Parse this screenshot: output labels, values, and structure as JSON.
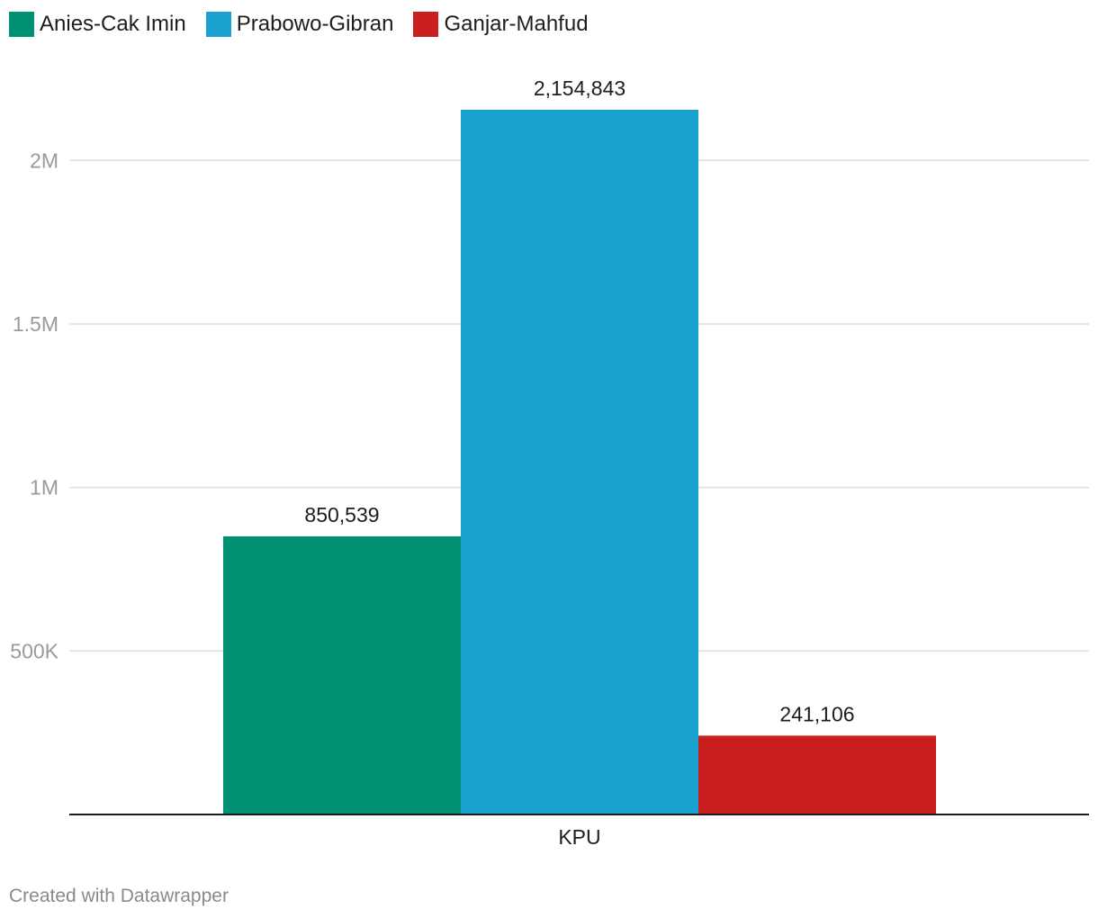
{
  "legend": [
    {
      "label": "Anies-Cak Imin",
      "color": "#009173"
    },
    {
      "label": "Prabowo-Gibran",
      "color": "#1aa1d0"
    },
    {
      "label": "Ganjar-Mahfud",
      "color": "#c91f1f"
    }
  ],
  "footer": "Created with Datawrapper",
  "chart_data": {
    "type": "bar",
    "categories": [
      "KPU"
    ],
    "series": [
      {
        "name": "Anies-Cak Imin",
        "values": [
          850539
        ],
        "label": "850,539",
        "color": "#009173"
      },
      {
        "name": "Prabowo-Gibran",
        "values": [
          2154843
        ],
        "label": "2,154,843",
        "color": "#1aa1d0"
      },
      {
        "name": "Ganjar-Mahfud",
        "values": [
          241106
        ],
        "label": "241,106",
        "color": "#c91f1f"
      }
    ],
    "y_ticks": [
      {
        "value": 500000,
        "label": "500K"
      },
      {
        "value": 1000000,
        "label": "1M"
      },
      {
        "value": 1500000,
        "label": "1.5M"
      },
      {
        "value": 2000000,
        "label": "2M"
      }
    ],
    "ylim": [
      0,
      2154843
    ],
    "grid": true,
    "legend_position": "top-left",
    "title": "",
    "xlabel": "",
    "ylabel": ""
  }
}
